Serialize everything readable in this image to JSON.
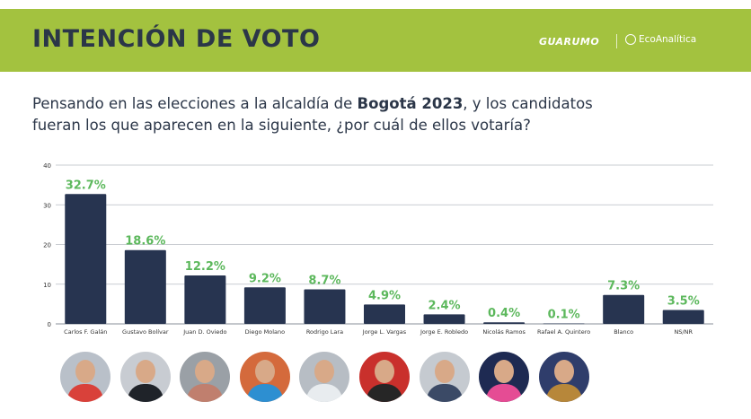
{
  "header": {
    "title": "INTENCIÓN DE VOTO",
    "brand_primary": "GUARUMO",
    "brand_secondary": "EcoAnalítica",
    "bg_color": "#a3c23f"
  },
  "question": {
    "part1": "Pensando en las elecciones a la alcaldía de ",
    "bold": "Bogotá 2023",
    "part2": ", y los candidatos fueran los que aparecen en la siguiente, ¿por cuál de ellos votaría?"
  },
  "chart_data": {
    "type": "bar",
    "categories": [
      "Carlos F. Galán",
      "Gustavo Bolívar",
      "Juan D. Oviedo",
      "Diego Molano",
      "Rodrigo Lara",
      "Jorge L. Vargas",
      "Jorge E. Robledo",
      "Nicolás Ramos",
      "Rafael A. Quintero",
      "Blanco",
      "NS/NR"
    ],
    "values": [
      32.7,
      18.6,
      12.2,
      9.2,
      8.7,
      4.9,
      2.4,
      0.4,
      0.1,
      7.3,
      3.5
    ],
    "labels": [
      "32.7%",
      "18.6%",
      "12.2%",
      "9.2%",
      "8.7%",
      "4.9%",
      "2.4%",
      "0.4%",
      "0.1%",
      "7.3%",
      "3.5%"
    ],
    "ylim": [
      0,
      40
    ],
    "yticks": [
      "0",
      "10",
      "20",
      "30",
      "40"
    ],
    "grid": true,
    "bar_color": "#273450",
    "label_color": "#5cb85c"
  },
  "avatars": [
    {
      "name": "avatar-carlos-galan",
      "bg": "#b9c0c9",
      "shirt": "#d9413a"
    },
    {
      "name": "avatar-gustavo-bolivar",
      "bg": "#c8ccd2",
      "shirt": "#1f2329"
    },
    {
      "name": "avatar-juan-oviedo",
      "bg": "#9aa0a6",
      "shirt": "#c07f6e"
    },
    {
      "name": "avatar-diego-molano",
      "bg": "#d46a3c",
      "shirt": "#2d8fd1"
    },
    {
      "name": "avatar-rodrigo-lara",
      "bg": "#b7bdc4",
      "shirt": "#e8ecef"
    },
    {
      "name": "avatar-jorge-vargas",
      "bg": "#c9302c",
      "shirt": "#262626"
    },
    {
      "name": "avatar-jorge-robledo",
      "bg": "#c5cad0",
      "shirt": "#3b4a66"
    },
    {
      "name": "avatar-nicolas-ramos",
      "bg": "#1e2a52",
      "shirt": "#e54c94"
    },
    {
      "name": "avatar-rafael-quintero",
      "bg": "#2f3d6b",
      "shirt": "#b7873a"
    }
  ]
}
